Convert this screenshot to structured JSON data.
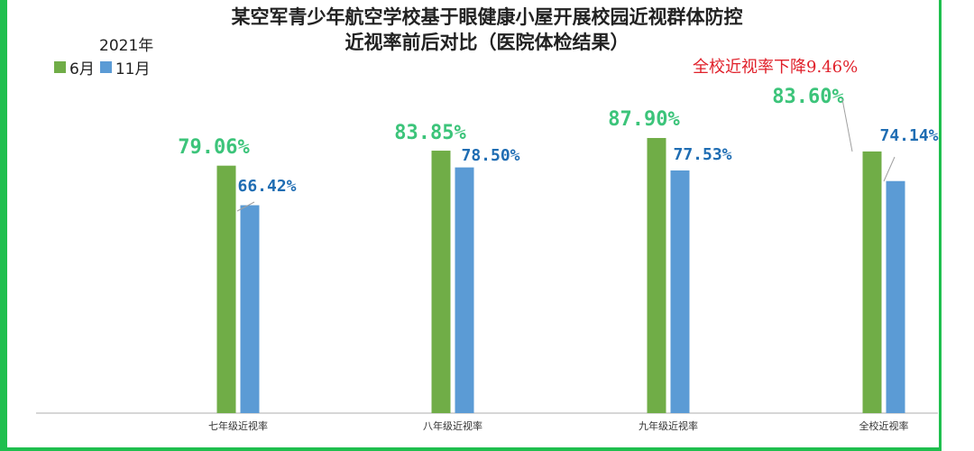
{
  "chart_data": {
    "type": "bar",
    "title": "某空军青少年航空学校基于眼健康小屋开展校园近视群体防控",
    "subtitle": "近视率前后对比（医院体检结果）",
    "year_label": "2021年",
    "annotation": "全校近视率下降9.46%",
    "categories": [
      "七年级近视率",
      "八年级近视率",
      "九年级近视率",
      "全校近视率"
    ],
    "series": [
      {
        "name": "6月",
        "color": "#70ad47",
        "label_color": "#3cc47a",
        "values": [
          79.06,
          83.85,
          87.9,
          83.6
        ],
        "labels": [
          "79.06%",
          "83.85%",
          "87.90%",
          "83.60%"
        ]
      },
      {
        "name": "11月",
        "color": "#5b9bd5",
        "label_color": "#1f6db3",
        "values": [
          66.42,
          78.5,
          77.53,
          74.14
        ],
        "labels": [
          "66.42%",
          "78.50%",
          "77.53%",
          "74.14%"
        ]
      }
    ],
    "ylim": [
      0,
      100
    ],
    "grid": false,
    "legend": "top-left"
  }
}
